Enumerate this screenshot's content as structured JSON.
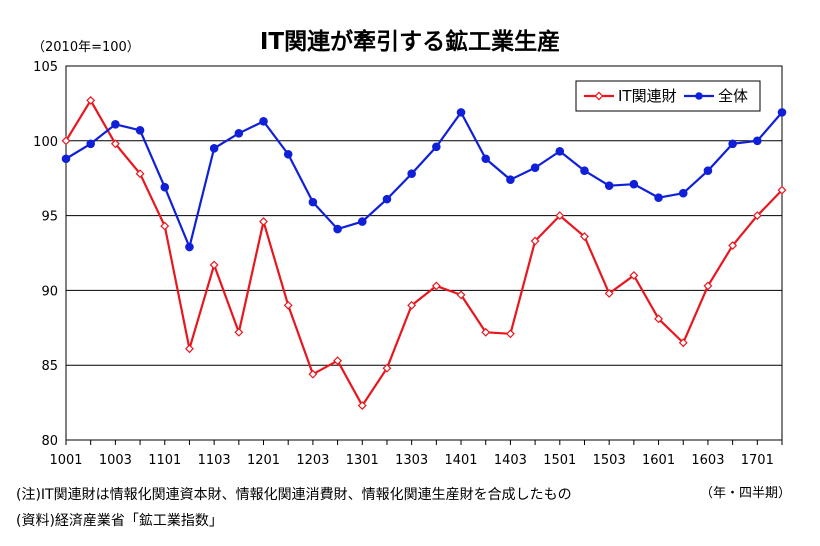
{
  "chart_data": {
    "type": "line",
    "title": "IT関連が牽引する鉱工業生産",
    "ylabel": "（2010年=100）",
    "xlabel": "（年・四半期）",
    "ylim": [
      80,
      105
    ],
    "yticks": [
      80,
      85,
      90,
      95,
      100,
      105
    ],
    "x": [
      "1001",
      "1002",
      "1003",
      "1004",
      "1101",
      "1102",
      "1103",
      "1104",
      "1201",
      "1202",
      "1203",
      "1204",
      "1301",
      "1302",
      "1303",
      "1304",
      "1401",
      "1402",
      "1403",
      "1404",
      "1501",
      "1502",
      "1503",
      "1504",
      "1601",
      "1602",
      "1603",
      "1604",
      "1701",
      "1702"
    ],
    "xtick_labels": [
      "1001",
      "1003",
      "1101",
      "1103",
      "1201",
      "1203",
      "1301",
      "1303",
      "1401",
      "1403",
      "1501",
      "1503",
      "1601",
      "1603",
      "1701"
    ],
    "grid": true,
    "legend": "top-right",
    "series": [
      {
        "name": "IT関連財",
        "color": "#e8171f",
        "marker": "diamond-open",
        "values": [
          100.0,
          102.7,
          99.8,
          97.8,
          94.3,
          86.1,
          91.7,
          87.2,
          94.6,
          89.0,
          84.4,
          85.3,
          82.3,
          84.8,
          89.0,
          90.3,
          89.7,
          87.2,
          87.1,
          93.3,
          95.0,
          93.6,
          89.8,
          91.0,
          88.1,
          86.5,
          90.3,
          93.0,
          95.0,
          96.7
        ]
      },
      {
        "name": "全体",
        "color": "#1020d8",
        "marker": "circle-filled",
        "values": [
          98.8,
          99.8,
          101.1,
          100.7,
          96.9,
          92.9,
          99.5,
          100.5,
          101.3,
          99.1,
          95.9,
          94.1,
          94.6,
          96.1,
          97.8,
          99.6,
          101.9,
          98.8,
          97.4,
          98.2,
          99.3,
          98.0,
          97.0,
          97.1,
          96.2,
          96.5,
          98.0,
          99.8,
          100.0,
          101.9
        ]
      }
    ]
  },
  "notes": {
    "line1": "(注)IT関連財は情報化関連資本財、情報化関連消費財、情報化関連生産財を合成したもの",
    "line2": "(資料)経済産業省「鉱工業指数」"
  }
}
